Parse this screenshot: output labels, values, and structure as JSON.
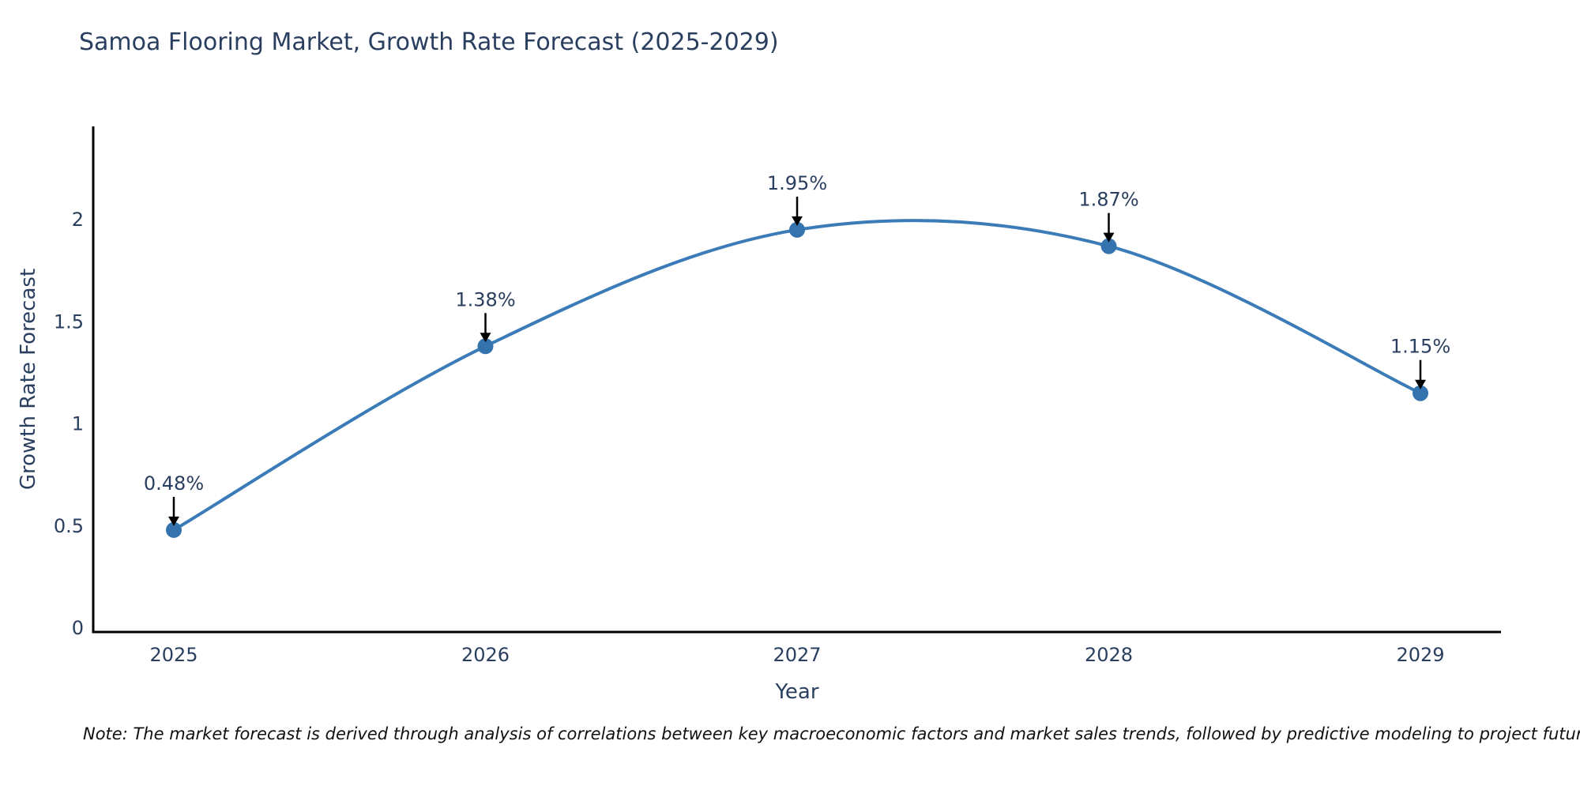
{
  "title": "Samoa Flooring Market, Growth Rate Forecast (2025-2029)",
  "note": "Note: The market forecast is derived through analysis of correlations between key macroeconomic factors and market sales trends, followed by predictive modeling to project future sales",
  "chart_data": {
    "type": "line",
    "curve": "spline",
    "title": "Samoa Flooring Market, Growth Rate Forecast (2025-2029)",
    "xlabel": "Year",
    "ylabel": "Growth Rate Forecast",
    "x": [
      2025,
      2026,
      2027,
      2028,
      2029
    ],
    "xtick_labels": [
      "2025",
      "2026",
      "2027",
      "2028",
      "2029"
    ],
    "series": [
      {
        "name": "Growth Rate Forecast",
        "values": [
          0.48,
          1.38,
          1.95,
          1.87,
          1.15
        ],
        "point_labels": [
          "0.48%",
          "1.38%",
          "1.95%",
          "1.87%",
          "1.15%"
        ]
      }
    ],
    "yticks": [
      0,
      0.5,
      1,
      1.5,
      2
    ],
    "ytick_labels": [
      "0",
      "0.5",
      "1",
      "1.5",
      "2"
    ],
    "ylim": [
      0,
      2.46
    ],
    "grid": false,
    "legend_position": "none",
    "colors": {
      "line": "#3b7cb8",
      "marker": "#3573ae",
      "annotation_text": "#2a3f5f",
      "annotation_arrow": "#000000",
      "axis_line": "#000000",
      "tick_text": "#2a3f5f",
      "title_text": "#2a3f5f",
      "note_text": "#111111",
      "background": "#ffffff"
    }
  }
}
